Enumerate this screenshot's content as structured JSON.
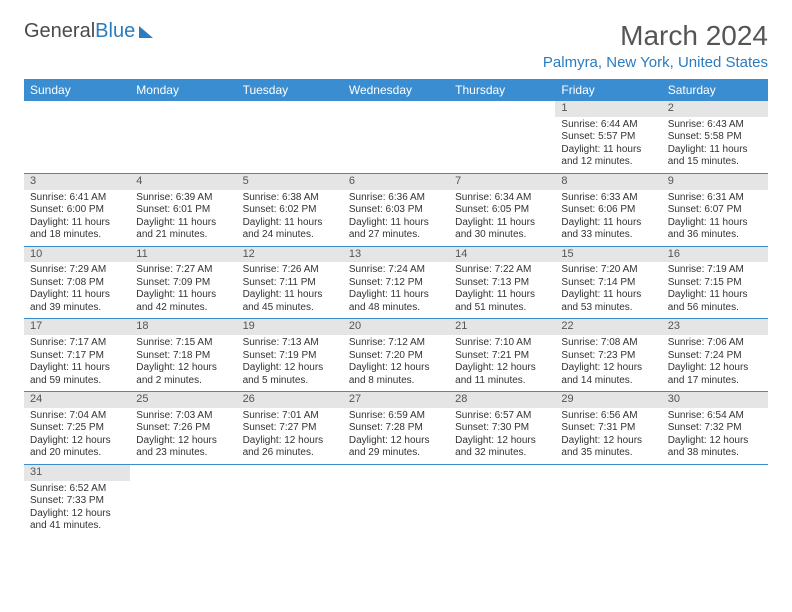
{
  "logo": {
    "text1": "General",
    "text2": "Blue"
  },
  "title": "March 2024",
  "location": "Palmyra, New York, United States",
  "colors": {
    "header_bg": "#3a8dd0",
    "accent": "#2b7bbf",
    "daynum_bg": "#e5e5e5",
    "text": "#333333"
  },
  "day_names": [
    "Sunday",
    "Monday",
    "Tuesday",
    "Wednesday",
    "Thursday",
    "Friday",
    "Saturday"
  ],
  "weeks": [
    [
      null,
      null,
      null,
      null,
      null,
      {
        "n": "1",
        "sunrise": "6:44 AM",
        "sunset": "5:57 PM",
        "dl1": "11 hours",
        "dl2": "and 12 minutes."
      },
      {
        "n": "2",
        "sunrise": "6:43 AM",
        "sunset": "5:58 PM",
        "dl1": "11 hours",
        "dl2": "and 15 minutes."
      }
    ],
    [
      {
        "n": "3",
        "sunrise": "6:41 AM",
        "sunset": "6:00 PM",
        "dl1": "11 hours",
        "dl2": "and 18 minutes."
      },
      {
        "n": "4",
        "sunrise": "6:39 AM",
        "sunset": "6:01 PM",
        "dl1": "11 hours",
        "dl2": "and 21 minutes."
      },
      {
        "n": "5",
        "sunrise": "6:38 AM",
        "sunset": "6:02 PM",
        "dl1": "11 hours",
        "dl2": "and 24 minutes."
      },
      {
        "n": "6",
        "sunrise": "6:36 AM",
        "sunset": "6:03 PM",
        "dl1": "11 hours",
        "dl2": "and 27 minutes."
      },
      {
        "n": "7",
        "sunrise": "6:34 AM",
        "sunset": "6:05 PM",
        "dl1": "11 hours",
        "dl2": "and 30 minutes."
      },
      {
        "n": "8",
        "sunrise": "6:33 AM",
        "sunset": "6:06 PM",
        "dl1": "11 hours",
        "dl2": "and 33 minutes."
      },
      {
        "n": "9",
        "sunrise": "6:31 AM",
        "sunset": "6:07 PM",
        "dl1": "11 hours",
        "dl2": "and 36 minutes."
      }
    ],
    [
      {
        "n": "10",
        "sunrise": "7:29 AM",
        "sunset": "7:08 PM",
        "dl1": "11 hours",
        "dl2": "and 39 minutes."
      },
      {
        "n": "11",
        "sunrise": "7:27 AM",
        "sunset": "7:09 PM",
        "dl1": "11 hours",
        "dl2": "and 42 minutes."
      },
      {
        "n": "12",
        "sunrise": "7:26 AM",
        "sunset": "7:11 PM",
        "dl1": "11 hours",
        "dl2": "and 45 minutes."
      },
      {
        "n": "13",
        "sunrise": "7:24 AM",
        "sunset": "7:12 PM",
        "dl1": "11 hours",
        "dl2": "and 48 minutes."
      },
      {
        "n": "14",
        "sunrise": "7:22 AM",
        "sunset": "7:13 PM",
        "dl1": "11 hours",
        "dl2": "and 51 minutes."
      },
      {
        "n": "15",
        "sunrise": "7:20 AM",
        "sunset": "7:14 PM",
        "dl1": "11 hours",
        "dl2": "and 53 minutes."
      },
      {
        "n": "16",
        "sunrise": "7:19 AM",
        "sunset": "7:15 PM",
        "dl1": "11 hours",
        "dl2": "and 56 minutes."
      }
    ],
    [
      {
        "n": "17",
        "sunrise": "7:17 AM",
        "sunset": "7:17 PM",
        "dl1": "11 hours",
        "dl2": "and 59 minutes."
      },
      {
        "n": "18",
        "sunrise": "7:15 AM",
        "sunset": "7:18 PM",
        "dl1": "12 hours",
        "dl2": "and 2 minutes."
      },
      {
        "n": "19",
        "sunrise": "7:13 AM",
        "sunset": "7:19 PM",
        "dl1": "12 hours",
        "dl2": "and 5 minutes."
      },
      {
        "n": "20",
        "sunrise": "7:12 AM",
        "sunset": "7:20 PM",
        "dl1": "12 hours",
        "dl2": "and 8 minutes."
      },
      {
        "n": "21",
        "sunrise": "7:10 AM",
        "sunset": "7:21 PM",
        "dl1": "12 hours",
        "dl2": "and 11 minutes."
      },
      {
        "n": "22",
        "sunrise": "7:08 AM",
        "sunset": "7:23 PM",
        "dl1": "12 hours",
        "dl2": "and 14 minutes."
      },
      {
        "n": "23",
        "sunrise": "7:06 AM",
        "sunset": "7:24 PM",
        "dl1": "12 hours",
        "dl2": "and 17 minutes."
      }
    ],
    [
      {
        "n": "24",
        "sunrise": "7:04 AM",
        "sunset": "7:25 PM",
        "dl1": "12 hours",
        "dl2": "and 20 minutes."
      },
      {
        "n": "25",
        "sunrise": "7:03 AM",
        "sunset": "7:26 PM",
        "dl1": "12 hours",
        "dl2": "and 23 minutes."
      },
      {
        "n": "26",
        "sunrise": "7:01 AM",
        "sunset": "7:27 PM",
        "dl1": "12 hours",
        "dl2": "and 26 minutes."
      },
      {
        "n": "27",
        "sunrise": "6:59 AM",
        "sunset": "7:28 PM",
        "dl1": "12 hours",
        "dl2": "and 29 minutes."
      },
      {
        "n": "28",
        "sunrise": "6:57 AM",
        "sunset": "7:30 PM",
        "dl1": "12 hours",
        "dl2": "and 32 minutes."
      },
      {
        "n": "29",
        "sunrise": "6:56 AM",
        "sunset": "7:31 PM",
        "dl1": "12 hours",
        "dl2": "and 35 minutes."
      },
      {
        "n": "30",
        "sunrise": "6:54 AM",
        "sunset": "7:32 PM",
        "dl1": "12 hours",
        "dl2": "and 38 minutes."
      }
    ],
    [
      {
        "n": "31",
        "sunrise": "6:52 AM",
        "sunset": "7:33 PM",
        "dl1": "12 hours",
        "dl2": "and 41 minutes."
      },
      null,
      null,
      null,
      null,
      null,
      null
    ]
  ],
  "labels": {
    "sunrise": "Sunrise:",
    "sunset": "Sunset:",
    "daylight": "Daylight:"
  }
}
